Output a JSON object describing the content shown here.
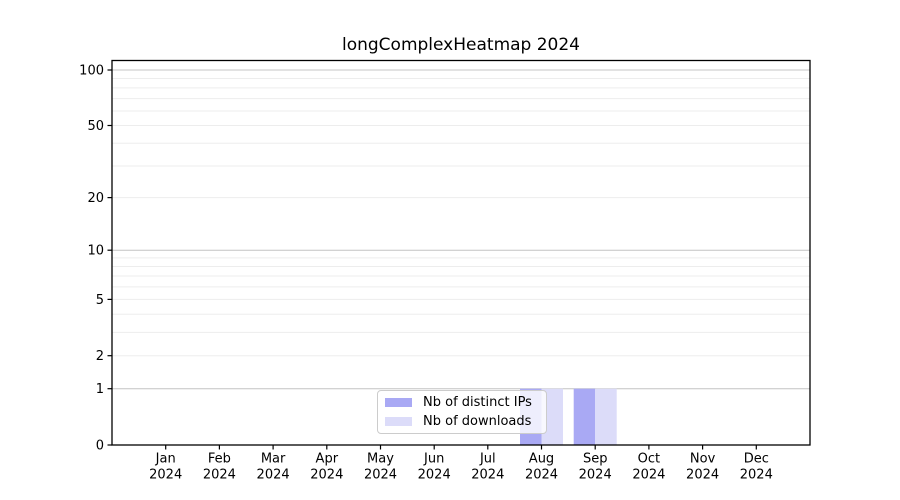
{
  "chart_data": {
    "type": "bar",
    "title": "longComplexHeatmap 2024",
    "x": {
      "months": [
        "Jan",
        "Feb",
        "Mar",
        "Apr",
        "May",
        "Jun",
        "Jul",
        "Aug",
        "Sep",
        "Oct",
        "Nov",
        "Dec"
      ],
      "year": "2024"
    },
    "series": [
      {
        "name": "Nb of distinct IPs",
        "color": "#a9a9f4",
        "values": [
          0,
          0,
          0,
          0,
          0,
          0,
          0,
          1,
          1,
          0,
          0,
          0
        ]
      },
      {
        "name": "Nb of downloads",
        "color": "#dcdcf9",
        "values": [
          0,
          0,
          0,
          0,
          0,
          0,
          0,
          1,
          1,
          0,
          0,
          0
        ]
      }
    ],
    "y_axis": {
      "scale": "log1p",
      "min": 0,
      "max": 100,
      "tick_values": [
        0,
        1,
        2,
        5,
        10,
        20,
        50,
        100
      ],
      "tick_labels": [
        "0",
        "1",
        "2",
        "5",
        "10",
        "20",
        "50",
        "100"
      ],
      "major_grid_values": [
        1,
        10,
        100
      ],
      "minor_grid_values": [
        2,
        3,
        4,
        5,
        6,
        7,
        8,
        9,
        20,
        30,
        40,
        50,
        60,
        70,
        80,
        90
      ]
    },
    "legend": {
      "position": "lower-center"
    },
    "colors": {
      "background": "#ffffff",
      "axis": "#000000",
      "text": "#000000",
      "major_grid": "#c4c4c4",
      "minor_grid": "#ededed",
      "legend_border": "#cccccc"
    }
  }
}
